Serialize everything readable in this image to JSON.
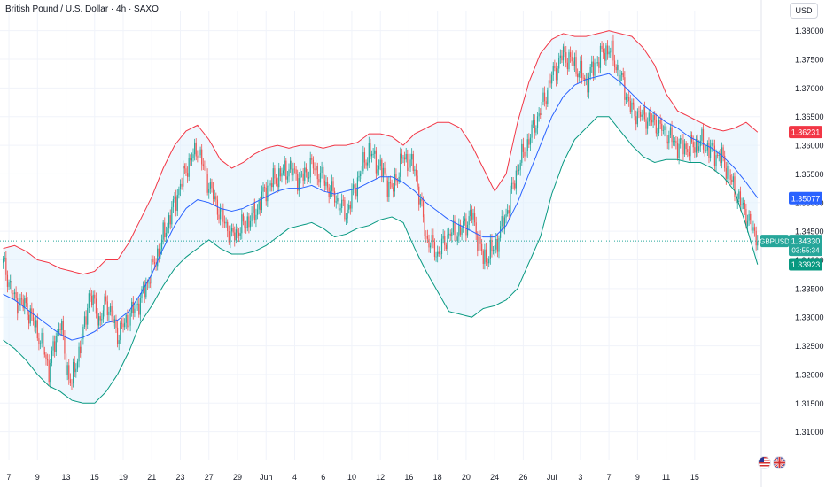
{
  "title": "British Pound / U.S. Dollar · 4h · SAXO",
  "currency_button": "USD",
  "colors": {
    "up": "#26a69a",
    "down": "#ef5350",
    "upper_band": "#f23645",
    "lower_band": "#089981",
    "basis": "#2962ff",
    "band_fill": "#e3f2fd",
    "last_price_line": "#26a69a",
    "upper_label": "#f23645",
    "basis_label": "#2962ff",
    "lower_label": "#089981"
  },
  "icons": [
    "us-flag-icon",
    "uk-flag-icon"
  ],
  "chart_data": {
    "type": "candlestick",
    "title": "British Pound / U.S. Dollar · 4h · SAXO",
    "symbol": "GBPUSD",
    "timeframe": "4h",
    "ylim": [
      1.305,
      1.3835
    ],
    "y_ticks": [
      "1.38000",
      "1.37500",
      "1.37000",
      "1.36500",
      "1.36000",
      "1.35500",
      "1.35000",
      "1.34500",
      "1.34000",
      "1.33500",
      "1.33000",
      "1.32500",
      "1.32000",
      "1.31500",
      "1.31000"
    ],
    "x_ticks": [
      "7",
      "9",
      "13",
      "15",
      "19",
      "21",
      "23",
      "27",
      "29",
      "Jun",
      "4",
      "6",
      "10",
      "12",
      "16",
      "18",
      "20",
      "24",
      "26",
      "Jul",
      "3",
      "7",
      "9",
      "11",
      "15"
    ],
    "last_price": {
      "label": "GBPUSD",
      "value": "1.34330",
      "countdown": "03:55:34"
    },
    "price_labels": [
      {
        "name": "upper-band",
        "value": "1.36231"
      },
      {
        "name": "basis",
        "value": "1.35077"
      },
      {
        "name": "lower-band",
        "value": "1.33923"
      }
    ],
    "anchors": [
      [
        0,
        1.3395
      ],
      [
        8,
        1.333
      ],
      [
        16,
        1.332
      ],
      [
        24,
        1.3275
      ],
      [
        32,
        1.321
      ],
      [
        40,
        1.3295
      ],
      [
        44,
        1.3215
      ],
      [
        48,
        1.3185
      ],
      [
        52,
        1.323
      ],
      [
        56,
        1.327
      ],
      [
        60,
        1.334
      ],
      [
        64,
        1.332
      ],
      [
        68,
        1.329
      ],
      [
        72,
        1.333
      ],
      [
        80,
        1.327
      ],
      [
        88,
        1.33
      ],
      [
        96,
        1.333
      ],
      [
        104,
        1.338
      ],
      [
        112,
        1.344
      ],
      [
        120,
        1.35
      ],
      [
        128,
        1.356
      ],
      [
        136,
        1.3595
      ],
      [
        144,
        1.353
      ],
      [
        152,
        1.348
      ],
      [
        160,
        1.344
      ],
      [
        168,
        1.346
      ],
      [
        176,
        1.348
      ],
      [
        184,
        1.3525
      ],
      [
        192,
        1.3545
      ],
      [
        200,
        1.356
      ],
      [
        208,
        1.354
      ],
      [
        216,
        1.3565
      ],
      [
        224,
        1.354
      ],
      [
        232,
        1.351
      ],
      [
        240,
        1.348
      ],
      [
        248,
        1.354
      ],
      [
        256,
        1.359
      ],
      [
        264,
        1.356
      ],
      [
        272,
        1.352
      ],
      [
        280,
        1.358
      ],
      [
        288,
        1.356
      ],
      [
        296,
        1.344
      ],
      [
        304,
        1.341
      ],
      [
        312,
        1.3445
      ],
      [
        320,
        1.345
      ],
      [
        328,
        1.348
      ],
      [
        336,
        1.34
      ],
      [
        344,
        1.342
      ],
      [
        352,
        1.348
      ],
      [
        360,
        1.356
      ],
      [
        368,
        1.361
      ],
      [
        376,
        1.366
      ],
      [
        384,
        1.372
      ],
      [
        392,
        1.376
      ],
      [
        400,
        1.374
      ],
      [
        408,
        1.371
      ],
      [
        416,
        1.375
      ],
      [
        424,
        1.377
      ],
      [
        432,
        1.372
      ],
      [
        440,
        1.366
      ],
      [
        448,
        1.365
      ],
      [
        456,
        1.364
      ],
      [
        464,
        1.362
      ],
      [
        472,
        1.36
      ],
      [
        480,
        1.3595
      ],
      [
        488,
        1.3605
      ],
      [
        496,
        1.359
      ],
      [
        504,
        1.3575
      ],
      [
        512,
        1.352
      ],
      [
        520,
        1.348
      ],
      [
        528,
        1.3433
      ]
    ],
    "series": [
      {
        "name": "upper band",
        "values": [
          [
            0,
            1.342
          ],
          [
            8,
            1.3425
          ],
          [
            16,
            1.3415
          ],
          [
            24,
            1.34
          ],
          [
            32,
            1.3395
          ],
          [
            40,
            1.3385
          ],
          [
            48,
            1.338
          ],
          [
            56,
            1.3375
          ],
          [
            64,
            1.338
          ],
          [
            72,
            1.34
          ],
          [
            80,
            1.34
          ],
          [
            88,
            1.343
          ],
          [
            96,
            1.347
          ],
          [
            104,
            1.351
          ],
          [
            112,
            1.356
          ],
          [
            120,
            1.36
          ],
          [
            128,
            1.3625
          ],
          [
            136,
            1.3635
          ],
          [
            144,
            1.361
          ],
          [
            152,
            1.3575
          ],
          [
            160,
            1.356
          ],
          [
            168,
            1.357
          ],
          [
            176,
            1.3585
          ],
          [
            184,
            1.3595
          ],
          [
            192,
            1.36
          ],
          [
            200,
            1.3595
          ],
          [
            208,
            1.36
          ],
          [
            216,
            1.36
          ],
          [
            224,
            1.3595
          ],
          [
            232,
            1.36
          ],
          [
            240,
            1.36
          ],
          [
            248,
            1.3605
          ],
          [
            256,
            1.362
          ],
          [
            264,
            1.362
          ],
          [
            272,
            1.3615
          ],
          [
            280,
            1.36
          ],
          [
            288,
            1.362
          ],
          [
            296,
            1.363
          ],
          [
            304,
            1.364
          ],
          [
            312,
            1.364
          ],
          [
            320,
            1.363
          ],
          [
            328,
            1.36
          ],
          [
            336,
            1.356
          ],
          [
            344,
            1.352
          ],
          [
            352,
            1.355
          ],
          [
            360,
            1.364
          ],
          [
            368,
            1.371
          ],
          [
            376,
            1.376
          ],
          [
            384,
            1.3785
          ],
          [
            392,
            1.3795
          ],
          [
            400,
            1.379
          ],
          [
            408,
            1.379
          ],
          [
            416,
            1.3795
          ],
          [
            424,
            1.38
          ],
          [
            432,
            1.3795
          ],
          [
            440,
            1.379
          ],
          [
            448,
            1.377
          ],
          [
            456,
            1.374
          ],
          [
            464,
            1.369
          ],
          [
            472,
            1.366
          ],
          [
            480,
            1.365
          ],
          [
            488,
            1.364
          ],
          [
            496,
            1.363
          ],
          [
            504,
            1.3625
          ],
          [
            512,
            1.363
          ],
          [
            520,
            1.364
          ],
          [
            528,
            1.3623
          ]
        ]
      },
      {
        "name": "basis",
        "values": [
          [
            0,
            1.334
          ],
          [
            8,
            1.333
          ],
          [
            16,
            1.3315
          ],
          [
            24,
            1.33
          ],
          [
            32,
            1.3285
          ],
          [
            40,
            1.327
          ],
          [
            48,
            1.326
          ],
          [
            56,
            1.3265
          ],
          [
            64,
            1.3275
          ],
          [
            72,
            1.329
          ],
          [
            80,
            1.3295
          ],
          [
            88,
            1.331
          ],
          [
            96,
            1.334
          ],
          [
            104,
            1.3375
          ],
          [
            112,
            1.342
          ],
          [
            120,
            1.346
          ],
          [
            128,
            1.349
          ],
          [
            136,
            1.3505
          ],
          [
            144,
            1.35
          ],
          [
            152,
            1.349
          ],
          [
            160,
            1.3485
          ],
          [
            168,
            1.349
          ],
          [
            176,
            1.35
          ],
          [
            184,
            1.351
          ],
          [
            192,
            1.352
          ],
          [
            200,
            1.3525
          ],
          [
            208,
            1.3525
          ],
          [
            216,
            1.353
          ],
          [
            224,
            1.352
          ],
          [
            232,
            1.3515
          ],
          [
            240,
            1.352
          ],
          [
            248,
            1.3525
          ],
          [
            256,
            1.3535
          ],
          [
            264,
            1.3545
          ],
          [
            272,
            1.3545
          ],
          [
            280,
            1.3535
          ],
          [
            288,
            1.352
          ],
          [
            296,
            1.35
          ],
          [
            304,
            1.3485
          ],
          [
            312,
            1.347
          ],
          [
            320,
            1.346
          ],
          [
            328,
            1.345
          ],
          [
            336,
            1.344
          ],
          [
            344,
            1.344
          ],
          [
            352,
            1.346
          ],
          [
            360,
            1.35
          ],
          [
            368,
            1.355
          ],
          [
            376,
            1.36
          ],
          [
            384,
            1.365
          ],
          [
            392,
            1.3685
          ],
          [
            400,
            1.3705
          ],
          [
            408,
            1.3715
          ],
          [
            416,
            1.372
          ],
          [
            424,
            1.3725
          ],
          [
            432,
            1.371
          ],
          [
            440,
            1.369
          ],
          [
            448,
            1.367
          ],
          [
            456,
            1.3655
          ],
          [
            464,
            1.364
          ],
          [
            472,
            1.363
          ],
          [
            480,
            1.3615
          ],
          [
            488,
            1.3605
          ],
          [
            496,
            1.3595
          ],
          [
            504,
            1.358
          ],
          [
            512,
            1.356
          ],
          [
            520,
            1.3535
          ],
          [
            528,
            1.3508
          ]
        ]
      },
      {
        "name": "lower band",
        "values": [
          [
            0,
            1.326
          ],
          [
            8,
            1.3245
          ],
          [
            16,
            1.3225
          ],
          [
            24,
            1.32
          ],
          [
            32,
            1.318
          ],
          [
            40,
            1.317
          ],
          [
            48,
            1.3155
          ],
          [
            56,
            1.315
          ],
          [
            64,
            1.315
          ],
          [
            72,
            1.317
          ],
          [
            80,
            1.32
          ],
          [
            88,
            1.324
          ],
          [
            96,
            1.329
          ],
          [
            104,
            1.332
          ],
          [
            112,
            1.3355
          ],
          [
            120,
            1.3385
          ],
          [
            128,
            1.3405
          ],
          [
            136,
            1.342
          ],
          [
            144,
            1.3435
          ],
          [
            152,
            1.342
          ],
          [
            160,
            1.341
          ],
          [
            168,
            1.341
          ],
          [
            176,
            1.3415
          ],
          [
            184,
            1.3425
          ],
          [
            192,
            1.344
          ],
          [
            200,
            1.3455
          ],
          [
            208,
            1.346
          ],
          [
            216,
            1.3465
          ],
          [
            224,
            1.3455
          ],
          [
            232,
            1.344
          ],
          [
            240,
            1.3445
          ],
          [
            248,
            1.3455
          ],
          [
            256,
            1.346
          ],
          [
            264,
            1.347
          ],
          [
            272,
            1.3475
          ],
          [
            280,
            1.3465
          ],
          [
            288,
            1.342
          ],
          [
            296,
            1.338
          ],
          [
            304,
            1.3345
          ],
          [
            312,
            1.331
          ],
          [
            320,
            1.3305
          ],
          [
            328,
            1.33
          ],
          [
            336,
            1.3315
          ],
          [
            344,
            1.332
          ],
          [
            352,
            1.333
          ],
          [
            360,
            1.335
          ],
          [
            368,
            1.3395
          ],
          [
            376,
            1.344
          ],
          [
            384,
            1.3515
          ],
          [
            392,
            1.357
          ],
          [
            400,
            1.361
          ],
          [
            408,
            1.363
          ],
          [
            416,
            1.365
          ],
          [
            424,
            1.365
          ],
          [
            432,
            1.3625
          ],
          [
            440,
            1.36
          ],
          [
            448,
            1.358
          ],
          [
            456,
            1.357
          ],
          [
            464,
            1.3575
          ],
          [
            472,
            1.3575
          ],
          [
            480,
            1.357
          ],
          [
            488,
            1.357
          ],
          [
            496,
            1.356
          ],
          [
            504,
            1.3545
          ],
          [
            512,
            1.352
          ],
          [
            520,
            1.346
          ],
          [
            528,
            1.3392
          ]
        ]
      }
    ]
  }
}
